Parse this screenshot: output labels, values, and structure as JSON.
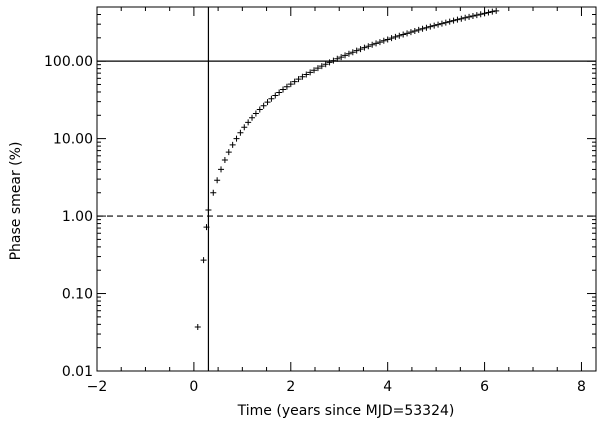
{
  "chart_data": {
    "type": "scatter",
    "title": "",
    "xlabel": "Time (years since MJD=53324)",
    "ylabel": "Phase smear (%)",
    "xlim": [
      -2,
      8.3
    ],
    "ylim": [
      0.01,
      500
    ],
    "yscale": "log",
    "grid": false,
    "x_ticks": [
      -2,
      0,
      2,
      4,
      6,
      8
    ],
    "x_tick_labels": [
      "−2",
      "0",
      "2",
      "4",
      "6",
      "8"
    ],
    "y_ticks": [
      0.01,
      0.1,
      1,
      10,
      100
    ],
    "y_tick_labels": [
      "0.01",
      "0.10",
      "1.00",
      "10.00",
      "100.00"
    ],
    "reference_lines": [
      {
        "orientation": "vertical",
        "x": 0.3,
        "style": "solid"
      },
      {
        "orientation": "horizontal",
        "y": 100,
        "style": "solid"
      },
      {
        "orientation": "horizontal",
        "y": 1,
        "style": "dashed"
      }
    ],
    "marker": "+",
    "series": [
      {
        "x": [
          0.08,
          0.2,
          0.26,
          0.3,
          0.4,
          0.48,
          0.56,
          0.64,
          0.72,
          0.8,
          0.88,
          0.96,
          1.04,
          1.12,
          1.2,
          1.28,
          1.36,
          1.44,
          1.52,
          1.6,
          1.68,
          1.76,
          1.84,
          1.92,
          2.0,
          2.08,
          2.16,
          2.24,
          2.32,
          2.4,
          2.48,
          2.56,
          2.64,
          2.72,
          2.8,
          2.88,
          2.96,
          3.04,
          3.12,
          3.2,
          3.28,
          3.36,
          3.44,
          3.52,
          3.6,
          3.68,
          3.76,
          3.84,
          3.92,
          4.0,
          4.08,
          4.16,
          4.24,
          4.32,
          4.4,
          4.48,
          4.56,
          4.64,
          4.72,
          4.8,
          4.88,
          4.96,
          5.04,
          5.12,
          5.2,
          5.28,
          5.36,
          5.44,
          5.52,
          5.6,
          5.68,
          5.76,
          5.84,
          5.92,
          6.0,
          6.08,
          6.16,
          6.24
        ],
        "values": [
          0.037,
          0.27,
          0.72,
          1.2,
          2.0,
          2.9,
          4.0,
          5.3,
          6.7,
          8.3,
          10.0,
          11.9,
          14.0,
          16.2,
          18.6,
          21.1,
          23.8,
          26.6,
          29.6,
          32.7,
          36.0,
          39.4,
          43.0,
          46.7,
          50.5,
          54.5,
          58.6,
          62.8,
          67.2,
          71.7,
          76.4,
          81.2,
          86.1,
          91.2,
          96.4,
          101.7,
          107.2,
          112.8,
          118.6,
          124.5,
          130.5,
          136.6,
          142.9,
          149.3,
          155.9,
          162.6,
          169.4,
          176.3,
          183.4,
          190.6,
          198.0,
          205.5,
          213.1,
          220.8,
          228.7,
          236.7,
          244.9,
          253.1,
          261.5,
          270.1,
          278.8,
          287.6,
          296.5,
          305.6,
          314.8,
          324.1,
          333.6,
          343.2,
          352.9,
          362.8,
          372.8,
          382.9,
          393.1,
          403.5,
          414.0,
          424.6,
          435.4,
          446.3
        ]
      }
    ]
  }
}
